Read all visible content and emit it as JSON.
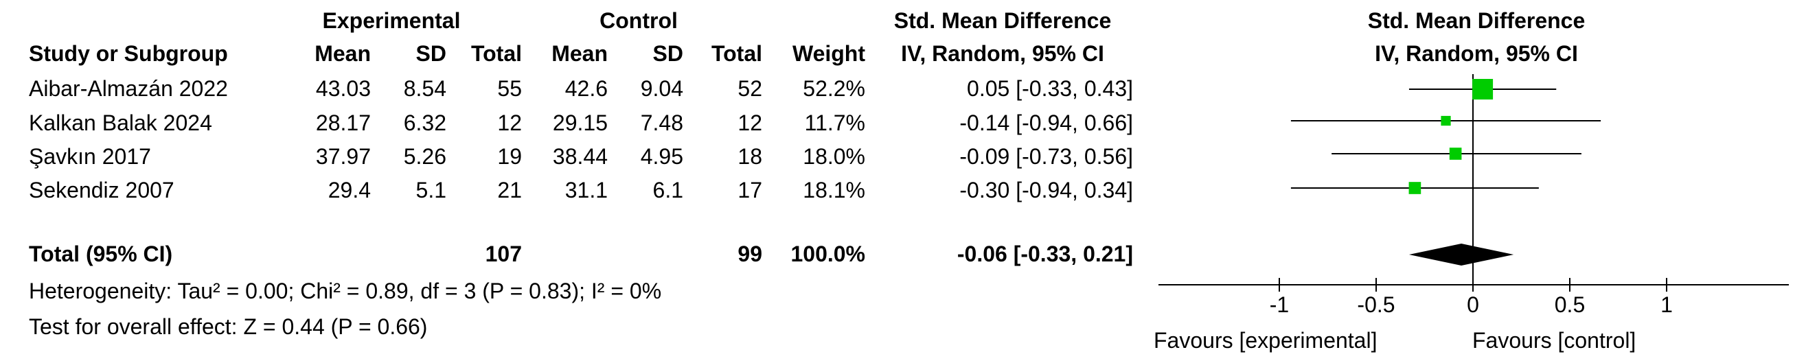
{
  "headers": {
    "group_experimental": "Experimental",
    "group_control": "Control",
    "smd_title": "Std. Mean Difference",
    "smd_method": "IV, Random, 95% CI",
    "plot_title": "Std. Mean Difference",
    "plot_method": "IV, Random, 95% CI",
    "study": "Study or Subgroup",
    "mean_e": "Mean",
    "sd_e": "SD",
    "total_e": "Total",
    "mean_c": "Mean",
    "sd_c": "SD",
    "total_c": "Total",
    "weight": "Weight"
  },
  "studies": [
    {
      "name": "Aibar-Almazán 2022",
      "mean_e": "43.03",
      "sd_e": "8.54",
      "total_e": "55",
      "mean_c": "42.6",
      "sd_c": "9.04",
      "total_c": "52",
      "weight": "52.2%",
      "ci_text": "0.05 [-0.33, 0.43]"
    },
    {
      "name": "Kalkan Balak 2024",
      "mean_e": "28.17",
      "sd_e": "6.32",
      "total_e": "12",
      "mean_c": "29.15",
      "sd_c": "7.48",
      "total_c": "12",
      "weight": "11.7%",
      "ci_text": "-0.14 [-0.94, 0.66]"
    },
    {
      "name": "Şavkın 2017",
      "mean_e": "37.97",
      "sd_e": "5.26",
      "total_e": "19",
      "mean_c": "38.44",
      "sd_c": "4.95",
      "total_c": "18",
      "weight": "18.0%",
      "ci_text": "-0.09 [-0.73, 0.56]"
    },
    {
      "name": "Sekendiz 2007",
      "mean_e": "29.4",
      "sd_e": "5.1",
      "total_e": "21",
      "mean_c": "31.1",
      "sd_c": "6.1",
      "total_c": "17",
      "weight": "18.1%",
      "ci_text": "-0.30 [-0.94, 0.34]"
    }
  ],
  "total": {
    "label": "Total (95% CI)",
    "total_e": "107",
    "total_c": "99",
    "weight": "100.0%",
    "ci_text": "-0.06 [-0.33, 0.21]"
  },
  "heterogeneity": "Heterogeneity: Tau² = 0.00; Chi² = 0.89, df = 3 (P = 0.83); I² = 0%",
  "overall_effect": "Test for overall effect: Z = 0.44 (P = 0.66)",
  "axis": {
    "favours_left": "Favours [experimental]",
    "favours_right": "Favours [control]"
  },
  "colors": {
    "marker": "#00cc00",
    "diamond": "#000000",
    "line": "#000000"
  },
  "chart_data": {
    "type": "forest",
    "title": "Std. Mean Difference",
    "subtitle": "IV, Random, 95% CI",
    "xlim": [
      -1.5,
      1.65
    ],
    "ticks": [
      -1,
      -0.5,
      0,
      0.5,
      1
    ],
    "tick_labels": [
      "-1",
      "-0.5",
      "0",
      "0.5",
      "1"
    ],
    "studies": [
      {
        "name": "Aibar-Almazán 2022",
        "est": 0.05,
        "lo": -0.33,
        "hi": 0.43,
        "weight": 52.2
      },
      {
        "name": "Kalkan Balak 2024",
        "est": -0.14,
        "lo": -0.94,
        "hi": 0.66,
        "weight": 11.7
      },
      {
        "name": "Şavkın 2017",
        "est": -0.09,
        "lo": -0.73,
        "hi": 0.56,
        "weight": 18.0
      },
      {
        "name": "Sekendiz 2007",
        "est": -0.3,
        "lo": -0.94,
        "hi": 0.34,
        "weight": 18.1
      }
    ],
    "overall": {
      "est": -0.06,
      "lo": -0.33,
      "hi": 0.21
    }
  }
}
